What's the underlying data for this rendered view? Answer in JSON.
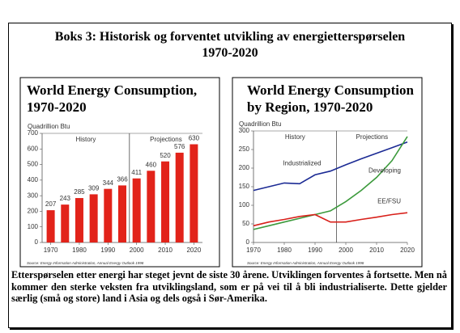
{
  "header": {
    "title_lines": [
      "Boks 3: Historisk og forventet utvikling av energietterspørselen",
      "1970-2020"
    ]
  },
  "chart_data": [
    {
      "type": "bar",
      "title_lines": [
        "World Energy Consumption,",
        "1970-2020"
      ],
      "y_label": "Quadrillion Btu",
      "x": [
        1970,
        1975,
        1980,
        1985,
        1990,
        1995,
        2000,
        2005,
        2010,
        2015,
        2020
      ],
      "values": [
        207,
        243,
        285,
        309,
        344,
        366,
        411,
        460,
        520,
        576,
        630
      ],
      "color": "#e2231a",
      "xlim": [
        1967,
        2023
      ],
      "xticks": [
        1970,
        1980,
        1990,
        2000,
        2010,
        2020
      ],
      "ylim": [
        0,
        700
      ],
      "yticks": [
        0,
        100,
        200,
        300,
        400,
        500,
        600,
        700
      ],
      "divider_x": 1997.5,
      "annotations": [
        "History",
        "Projections"
      ],
      "source": "Source: Energy Information Administration, Annual Energy Outlook 1998"
    },
    {
      "type": "line",
      "title_lines": [
        "World Energy Consumption",
        "by Region, 1970-2020"
      ],
      "y_label": "Quadrillion Btu",
      "x": [
        1970,
        1975,
        1980,
        1985,
        1990,
        1995,
        2000,
        2005,
        2010,
        2015,
        2020
      ],
      "series": [
        {
          "name": "Industrialized",
          "color": "#1b2a94",
          "values": [
            140,
            150,
            160,
            158,
            182,
            192,
            209,
            225,
            240,
            255,
            270
          ]
        },
        {
          "name": "Developing",
          "color": "#3c9a3c",
          "values": [
            35,
            45,
            55,
            65,
            75,
            85,
            110,
            140,
            175,
            220,
            285
          ]
        },
        {
          "name": "EE/FSU",
          "color": "#d8201a",
          "values": [
            45,
            55,
            62,
            70,
            75,
            55,
            55,
            62,
            68,
            75,
            80
          ]
        }
      ],
      "xlim": [
        1970,
        2020
      ],
      "xticks": [
        1970,
        1980,
        1990,
        2000,
        2010,
        2020
      ],
      "ylim": [
        0,
        300
      ],
      "yticks": [
        0,
        50,
        100,
        150,
        200,
        250,
        300
      ],
      "divider_x": 1997,
      "annotations": [
        "History",
        "Projections"
      ],
      "source": "Source: Energy Information Administration, Annual Energy Outlook 1998"
    }
  ],
  "body": {
    "paragraph": "Etterspørselen etter energi har steget jevnt de siste 30 årene. Utviklingen forventes å fortsette. Men nå kommer den sterke veksten fra utviklingsland, som er på vei til å bli industrialiserte. Dette gjelder særlig (små og store) land i Asia og dels også i Sør-Amerika."
  }
}
